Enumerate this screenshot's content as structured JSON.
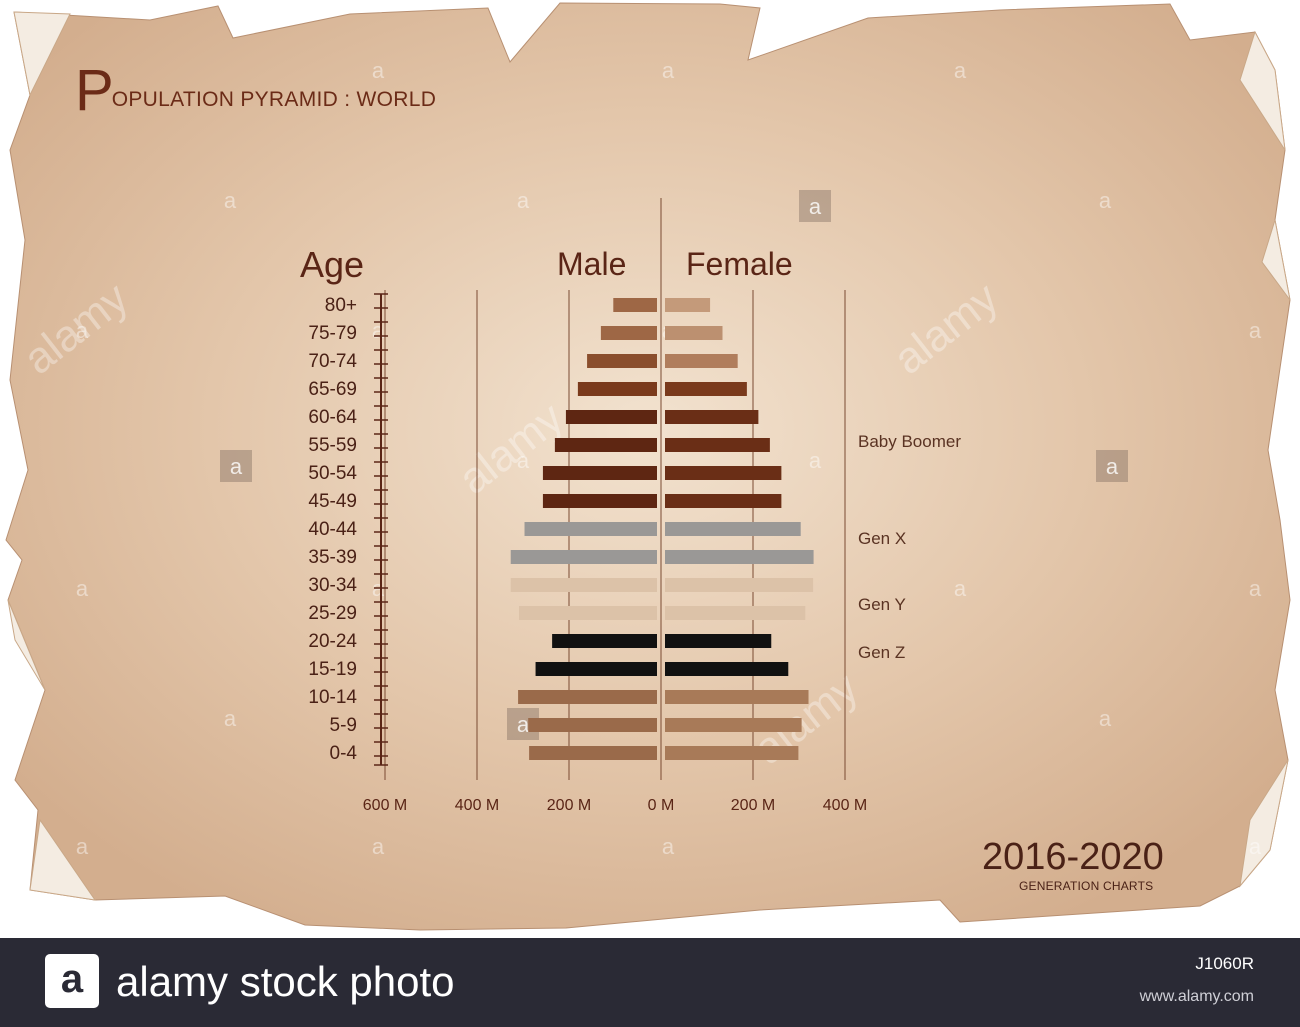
{
  "title": {
    "initial": "P",
    "rest": "OPULATION PYRAMID : WORLD"
  },
  "headers": {
    "age": "Age",
    "male": "Male",
    "female": "Female"
  },
  "chart_data": {
    "type": "bar",
    "orientation": "horizontal-pyramid",
    "title": "POPULATION PYRAMID : WORLD",
    "ylabel": "Age",
    "categories": [
      "80+",
      "75-79",
      "70-74",
      "65-69",
      "60-64",
      "55-59",
      "50-54",
      "45-49",
      "40-44",
      "35-39",
      "30-34",
      "25-29",
      "20-24",
      "15-19",
      "10-14",
      "5-9",
      "0-4"
    ],
    "series": [
      {
        "name": "Male",
        "values": [
          95,
          122,
          152,
          172,
          198,
          222,
          248,
          248,
          288,
          318,
          318,
          300,
          228,
          264,
          302,
          280,
          278
        ]
      },
      {
        "name": "Female",
        "values": [
          98,
          125,
          158,
          178,
          203,
          228,
          253,
          253,
          295,
          323,
          322,
          305,
          231,
          268,
          312,
          297,
          290
        ]
      }
    ],
    "bar_colors": [
      "#9e6745",
      "#9e6745",
      "#8a4e2d",
      "#7a3a1c",
      "#5e2612",
      "#5e2612",
      "#5e2612",
      "#5e2612",
      "#9a9896",
      "#9a9896",
      "#dcc2a8",
      "#dcc2a8",
      "#111111",
      "#111111",
      "#9a6a4a",
      "#9a6a4a",
      "#9a6a4a"
    ],
    "female_colors": [
      "#c49a7a",
      "#bc9070",
      "#b07d5c",
      "#7a3a1c",
      "#6a2e16",
      "#6a2e16",
      "#6a2e16",
      "#6a2e16",
      "#9a9896",
      "#9a9896",
      "#dcc2a8",
      "#dcc2a8",
      "#111111",
      "#111111",
      "#a87a58",
      "#a87a58",
      "#a87a58"
    ],
    "male_axis": {
      "ticks": [
        "600 M",
        "400 M",
        "200 M",
        "0 M"
      ],
      "values": [
        600,
        400,
        200,
        0
      ]
    },
    "female_axis": {
      "ticks": [
        "200 M",
        "400 M"
      ],
      "values": [
        200,
        400
      ]
    },
    "generations": [
      {
        "label": "Baby Boomer",
        "row": "55-59"
      },
      {
        "label": "Gen X",
        "row": "40-44"
      },
      {
        "label": "Gen Y",
        "row": "25-29"
      },
      {
        "label": "Gen Z",
        "row": "15-19"
      }
    ]
  },
  "period": {
    "years": "2016-2020",
    "subtitle": "GENERATION CHARTS"
  },
  "watermark": {
    "text": "alamy",
    "letter": "a"
  },
  "footer": {
    "logo_letter": "a",
    "brand": "alamy stock photo",
    "code": "J1060R",
    "url": "www.alamy.com"
  },
  "colors": {
    "paper": "#dcbc9e",
    "paper_center": "#f1dfca",
    "title": "#6b2b17",
    "footer": "#2a2a35"
  }
}
